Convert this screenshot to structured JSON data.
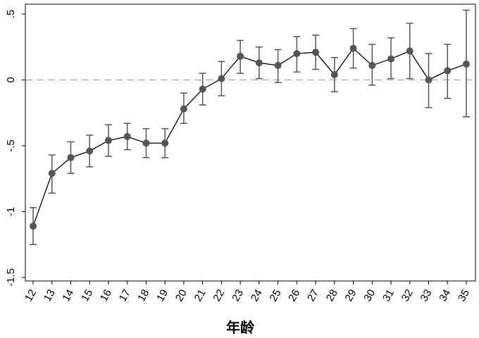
{
  "chart_data": {
    "type": "line",
    "title": "",
    "xlabel": "年龄",
    "ylabel": "",
    "x": [
      12,
      13,
      14,
      15,
      16,
      17,
      18,
      19,
      20,
      21,
      22,
      23,
      24,
      25,
      26,
      27,
      28,
      29,
      30,
      31,
      32,
      33,
      34,
      35
    ],
    "x_tick_labels": [
      "12",
      "13",
      "14",
      "15",
      "16",
      "17",
      "18",
      "19",
      "20",
      "21",
      "22",
      "23",
      "24",
      "25",
      "26",
      "27",
      "28",
      "29",
      "30",
      "31",
      "32",
      "33",
      "34",
      "35"
    ],
    "series": [
      {
        "values": [
          -1.11,
          -0.71,
          -0.59,
          -0.54,
          -0.46,
          -0.43,
          -0.48,
          -0.48,
          -0.22,
          -0.07,
          0.01,
          0.18,
          0.13,
          0.11,
          0.2,
          0.21,
          0.04,
          0.24,
          0.11,
          0.16,
          0.22,
          0.0,
          0.07,
          0.12
        ],
        "ci_lower": [
          -1.25,
          -0.86,
          -0.71,
          -0.66,
          -0.58,
          -0.53,
          -0.59,
          -0.59,
          -0.33,
          -0.19,
          -0.12,
          0.05,
          0.01,
          -0.02,
          0.06,
          0.08,
          -0.09,
          0.09,
          -0.04,
          0.01,
          0.01,
          -0.21,
          -0.14,
          -0.28
        ],
        "ci_upper": [
          -0.97,
          -0.57,
          -0.47,
          -0.42,
          -0.34,
          -0.33,
          -0.37,
          -0.37,
          -0.1,
          0.05,
          0.14,
          0.3,
          0.25,
          0.23,
          0.33,
          0.34,
          0.17,
          0.39,
          0.27,
          0.32,
          0.43,
          0.2,
          0.27,
          0.53
        ],
        "color": "#555555"
      }
    ],
    "reference_line": {
      "y": 0,
      "style": "dashed",
      "color": "#999999"
    },
    "y_ticks": [
      -1.5,
      -1,
      -0.5,
      0,
      0.5
    ],
    "y_tick_labels": [
      "-1.5",
      "-1",
      "-.5",
      "0",
      ".5"
    ],
    "ylim": [
      -1.5,
      0.5
    ],
    "xlim": [
      12,
      35
    ],
    "grid": false,
    "line_color": "#000000",
    "marker_color": "#555555"
  }
}
